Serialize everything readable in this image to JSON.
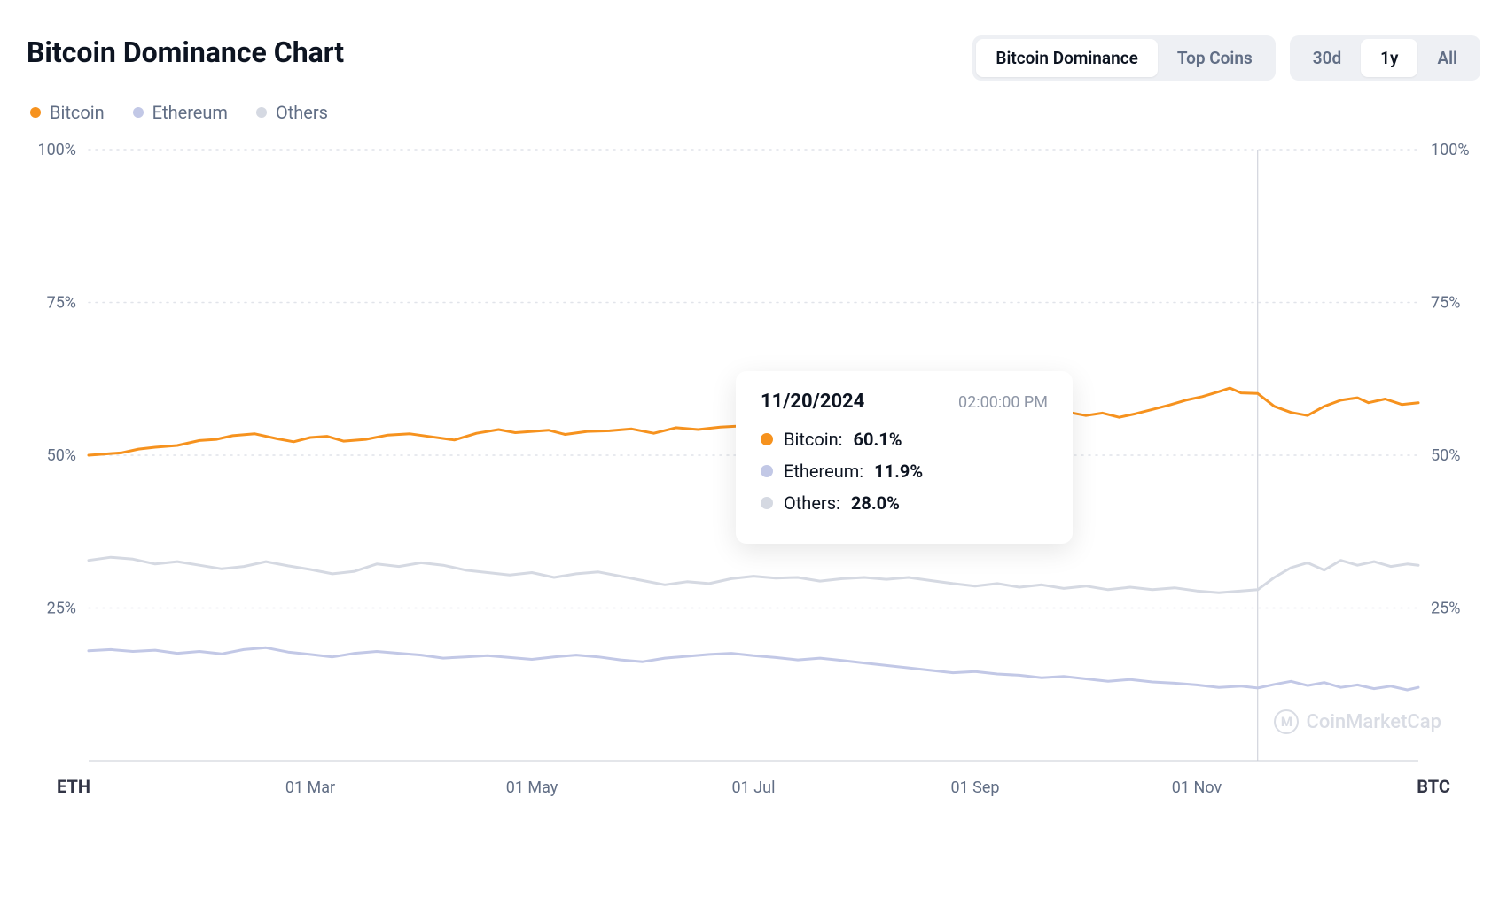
{
  "title": "Bitcoin Dominance Chart",
  "view_tabs": {
    "items": [
      {
        "label": "Bitcoin Dominance",
        "active": true
      },
      {
        "label": "Top Coins",
        "active": false
      }
    ]
  },
  "range_tabs": {
    "items": [
      {
        "label": "30d",
        "active": false
      },
      {
        "label": "1y",
        "active": true
      },
      {
        "label": "All",
        "active": false
      }
    ]
  },
  "legend": [
    {
      "name": "Bitcoin",
      "color": "#f6921e"
    },
    {
      "name": "Ethereum",
      "color": "#c2c8e6"
    },
    {
      "name": "Others",
      "color": "#d5d9e2"
    }
  ],
  "chart": {
    "type": "line",
    "background_color": "#ffffff",
    "grid_color": "#e1e4ea",
    "grid_style": "dotted",
    "line_width": 3,
    "y_axis": {
      "min": 0,
      "max": 100,
      "ticks": [
        25,
        50,
        75,
        100
      ],
      "tick_labels": [
        "25%",
        "50%",
        "75%",
        "100%"
      ],
      "left_end_label": "ETH",
      "right_end_label": "BTC",
      "label_color": "#616e85",
      "label_fontsize": 18
    },
    "x_axis": {
      "domain_min": 0,
      "domain_max": 12,
      "tick_positions": [
        2,
        4,
        6,
        8,
        10
      ],
      "tick_labels": [
        "01 Mar",
        "01 May",
        "01 Jul",
        "01 Sep",
        "01 Nov"
      ],
      "label_color": "#616e85",
      "label_fontsize": 18
    },
    "crosshair": {
      "x": 10.55,
      "color": "#c8ccd6",
      "width": 1
    },
    "series": [
      {
        "name": "Bitcoin",
        "color": "#f6921e",
        "data": [
          [
            0.0,
            50.0
          ],
          [
            0.15,
            50.2
          ],
          [
            0.3,
            50.4
          ],
          [
            0.45,
            51.0
          ],
          [
            0.6,
            51.3
          ],
          [
            0.8,
            51.6
          ],
          [
            1.0,
            52.4
          ],
          [
            1.15,
            52.6
          ],
          [
            1.3,
            53.2
          ],
          [
            1.5,
            53.5
          ],
          [
            1.7,
            52.7
          ],
          [
            1.85,
            52.2
          ],
          [
            2.0,
            52.9
          ],
          [
            2.15,
            53.1
          ],
          [
            2.3,
            52.3
          ],
          [
            2.5,
            52.6
          ],
          [
            2.7,
            53.3
          ],
          [
            2.9,
            53.5
          ],
          [
            3.1,
            53.0
          ],
          [
            3.3,
            52.5
          ],
          [
            3.5,
            53.6
          ],
          [
            3.7,
            54.2
          ],
          [
            3.85,
            53.7
          ],
          [
            4.0,
            53.9
          ],
          [
            4.15,
            54.1
          ],
          [
            4.3,
            53.4
          ],
          [
            4.5,
            53.9
          ],
          [
            4.7,
            54.0
          ],
          [
            4.9,
            54.3
          ],
          [
            5.1,
            53.6
          ],
          [
            5.3,
            54.5
          ],
          [
            5.5,
            54.2
          ],
          [
            5.7,
            54.6
          ],
          [
            5.9,
            54.8
          ],
          [
            6.1,
            54.3
          ],
          [
            6.3,
            55.0
          ],
          [
            6.45,
            55.3
          ],
          [
            6.6,
            55.6
          ],
          [
            6.75,
            55.1
          ],
          [
            6.9,
            55.5
          ],
          [
            7.05,
            56.0
          ],
          [
            7.2,
            55.7
          ],
          [
            7.35,
            56.2
          ],
          [
            7.5,
            55.8
          ],
          [
            7.65,
            56.1
          ],
          [
            7.8,
            56.8
          ],
          [
            7.95,
            56.2
          ],
          [
            8.1,
            56.9
          ],
          [
            8.25,
            56.5
          ],
          [
            8.4,
            56.7
          ],
          [
            8.55,
            57.2
          ],
          [
            8.7,
            56.6
          ],
          [
            8.85,
            57.0
          ],
          [
            9.0,
            56.5
          ],
          [
            9.15,
            56.9
          ],
          [
            9.3,
            56.2
          ],
          [
            9.45,
            56.8
          ],
          [
            9.6,
            57.5
          ],
          [
            9.75,
            58.2
          ],
          [
            9.9,
            59.0
          ],
          [
            10.05,
            59.6
          ],
          [
            10.2,
            60.4
          ],
          [
            10.3,
            61.0
          ],
          [
            10.4,
            60.2
          ],
          [
            10.55,
            60.1
          ],
          [
            10.7,
            58.0
          ],
          [
            10.85,
            57.0
          ],
          [
            11.0,
            56.5
          ],
          [
            11.15,
            58.0
          ],
          [
            11.3,
            59.0
          ],
          [
            11.45,
            59.4
          ],
          [
            11.55,
            58.6
          ],
          [
            11.7,
            59.2
          ],
          [
            11.85,
            58.3
          ],
          [
            12.0,
            58.6
          ]
        ]
      },
      {
        "name": "Others",
        "color": "#d5d9e2",
        "data": [
          [
            0.0,
            32.8
          ],
          [
            0.2,
            33.3
          ],
          [
            0.4,
            33.0
          ],
          [
            0.6,
            32.2
          ],
          [
            0.8,
            32.6
          ],
          [
            1.0,
            32.0
          ],
          [
            1.2,
            31.4
          ],
          [
            1.4,
            31.8
          ],
          [
            1.6,
            32.6
          ],
          [
            1.8,
            31.9
          ],
          [
            2.0,
            31.3
          ],
          [
            2.2,
            30.6
          ],
          [
            2.4,
            31.0
          ],
          [
            2.6,
            32.2
          ],
          [
            2.8,
            31.8
          ],
          [
            3.0,
            32.4
          ],
          [
            3.2,
            32.0
          ],
          [
            3.4,
            31.2
          ],
          [
            3.6,
            30.8
          ],
          [
            3.8,
            30.4
          ],
          [
            4.0,
            30.8
          ],
          [
            4.2,
            30.0
          ],
          [
            4.4,
            30.6
          ],
          [
            4.6,
            30.9
          ],
          [
            4.8,
            30.2
          ],
          [
            5.0,
            29.5
          ],
          [
            5.2,
            28.8
          ],
          [
            5.4,
            29.3
          ],
          [
            5.6,
            29.0
          ],
          [
            5.8,
            29.8
          ],
          [
            6.0,
            30.2
          ],
          [
            6.2,
            29.9
          ],
          [
            6.4,
            30.0
          ],
          [
            6.6,
            29.4
          ],
          [
            6.8,
            29.8
          ],
          [
            7.0,
            30.0
          ],
          [
            7.2,
            29.7
          ],
          [
            7.4,
            30.0
          ],
          [
            7.6,
            29.5
          ],
          [
            7.8,
            29.0
          ],
          [
            8.0,
            28.6
          ],
          [
            8.2,
            29.0
          ],
          [
            8.4,
            28.4
          ],
          [
            8.6,
            28.8
          ],
          [
            8.8,
            28.2
          ],
          [
            9.0,
            28.6
          ],
          [
            9.2,
            28.0
          ],
          [
            9.4,
            28.4
          ],
          [
            9.6,
            28.0
          ],
          [
            9.8,
            28.3
          ],
          [
            10.0,
            27.8
          ],
          [
            10.2,
            27.5
          ],
          [
            10.4,
            27.8
          ],
          [
            10.55,
            28.0
          ],
          [
            10.7,
            30.0
          ],
          [
            10.85,
            31.6
          ],
          [
            11.0,
            32.4
          ],
          [
            11.15,
            31.2
          ],
          [
            11.3,
            32.8
          ],
          [
            11.45,
            32.0
          ],
          [
            11.6,
            32.6
          ],
          [
            11.75,
            31.8
          ],
          [
            11.9,
            32.2
          ],
          [
            12.0,
            32.0
          ]
        ]
      },
      {
        "name": "Ethereum",
        "color": "#c2c8e6",
        "data": [
          [
            0.0,
            18.0
          ],
          [
            0.2,
            18.2
          ],
          [
            0.4,
            17.9
          ],
          [
            0.6,
            18.1
          ],
          [
            0.8,
            17.6
          ],
          [
            1.0,
            17.9
          ],
          [
            1.2,
            17.5
          ],
          [
            1.4,
            18.2
          ],
          [
            1.6,
            18.5
          ],
          [
            1.8,
            17.8
          ],
          [
            2.0,
            17.4
          ],
          [
            2.2,
            17.0
          ],
          [
            2.4,
            17.6
          ],
          [
            2.6,
            17.9
          ],
          [
            2.8,
            17.6
          ],
          [
            3.0,
            17.3
          ],
          [
            3.2,
            16.8
          ],
          [
            3.4,
            17.0
          ],
          [
            3.6,
            17.2
          ],
          [
            3.8,
            16.9
          ],
          [
            4.0,
            16.6
          ],
          [
            4.2,
            17.0
          ],
          [
            4.4,
            17.3
          ],
          [
            4.6,
            17.0
          ],
          [
            4.8,
            16.5
          ],
          [
            5.0,
            16.2
          ],
          [
            5.2,
            16.8
          ],
          [
            5.4,
            17.1
          ],
          [
            5.6,
            17.4
          ],
          [
            5.8,
            17.6
          ],
          [
            6.0,
            17.2
          ],
          [
            6.2,
            16.9
          ],
          [
            6.4,
            16.5
          ],
          [
            6.6,
            16.8
          ],
          [
            6.8,
            16.4
          ],
          [
            7.0,
            16.0
          ],
          [
            7.2,
            15.6
          ],
          [
            7.4,
            15.2
          ],
          [
            7.6,
            14.8
          ],
          [
            7.8,
            14.4
          ],
          [
            8.0,
            14.6
          ],
          [
            8.2,
            14.2
          ],
          [
            8.4,
            14.0
          ],
          [
            8.6,
            13.6
          ],
          [
            8.8,
            13.8
          ],
          [
            9.0,
            13.4
          ],
          [
            9.2,
            13.0
          ],
          [
            9.4,
            13.3
          ],
          [
            9.6,
            12.9
          ],
          [
            9.8,
            12.7
          ],
          [
            10.0,
            12.4
          ],
          [
            10.2,
            12.0
          ],
          [
            10.4,
            12.2
          ],
          [
            10.55,
            11.9
          ],
          [
            10.7,
            12.5
          ],
          [
            10.85,
            13.0
          ],
          [
            11.0,
            12.3
          ],
          [
            11.15,
            12.8
          ],
          [
            11.3,
            12.0
          ],
          [
            11.45,
            12.4
          ],
          [
            11.6,
            11.8
          ],
          [
            11.75,
            12.2
          ],
          [
            11.9,
            11.6
          ],
          [
            12.0,
            12.0
          ]
        ]
      }
    ]
  },
  "tooltip": {
    "date": "11/20/2024",
    "time": "02:00:00 PM",
    "rows": [
      {
        "name": "Bitcoin",
        "value": "60.1%",
        "color": "#f6921e"
      },
      {
        "name": "Ethereum",
        "value": "11.9%",
        "color": "#c2c8e6"
      },
      {
        "name": "Others",
        "value": "28.0%",
        "color": "#d5d9e2"
      }
    ]
  },
  "watermark": "CoinMarketCap"
}
